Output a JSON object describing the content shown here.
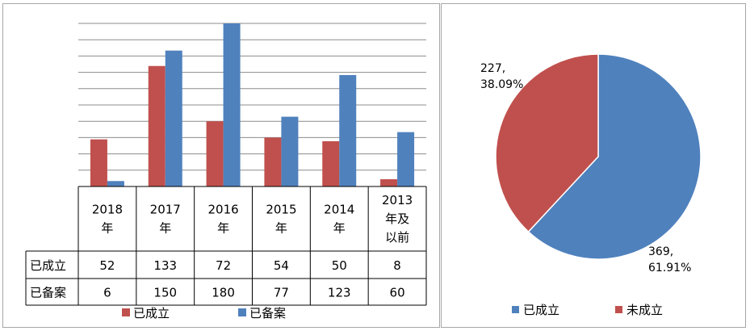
{
  "chart_data": [
    {
      "type": "bar",
      "categories": [
        "2018年",
        "2017年",
        "2016年",
        "2015年",
        "2014年",
        "2013年及以前"
      ],
      "series": [
        {
          "name": "已成立",
          "values": [
            52,
            133,
            72,
            54,
            50,
            8
          ],
          "color": "#c0504d"
        },
        {
          "name": "已备案",
          "values": [
            6,
            150,
            180,
            77,
            123,
            60
          ],
          "color": "#4f81bd"
        }
      ],
      "ylim": [
        0,
        180
      ],
      "grid": true,
      "data_table": true,
      "legend": "bottom"
    },
    {
      "type": "pie",
      "slices": [
        {
          "name": "已成立",
          "value": 369,
          "percent": "61.91%",
          "label": [
            "369,",
            "61.91%"
          ],
          "color": "#4f81bd"
        },
        {
          "name": "未成立",
          "value": 227,
          "percent": "38.09%",
          "label": [
            "227,",
            "38.09%"
          ],
          "color": "#c0504d"
        }
      ],
      "legend": "bottom"
    }
  ]
}
